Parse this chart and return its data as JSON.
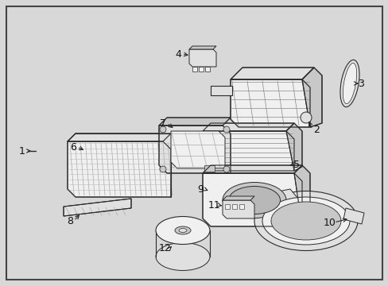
{
  "bg_color": "#d8d8d8",
  "border_color": "#444444",
  "line_color": "#2a2a2a",
  "fill_light": "#f0f0f0",
  "fill_mid": "#e0e0e0",
  "fill_dark": "#c8c8c8",
  "fig_width": 4.89,
  "fig_height": 3.6,
  "dpi": 100
}
